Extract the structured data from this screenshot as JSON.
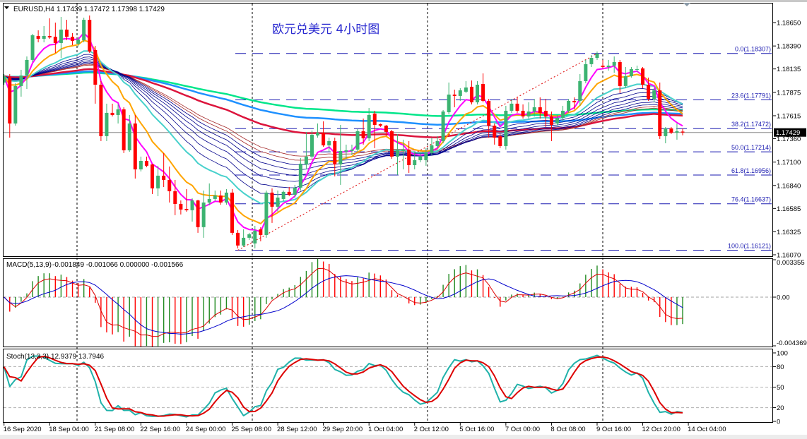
{
  "header": {
    "symbol": "EURUSD,H4",
    "ohlc_text": "1.17439 1.17472 1.17398 1.17429"
  },
  "title": "欧元兑美元 4小时图",
  "colors": {
    "bull": "#3cb371",
    "bear": "#ff0000",
    "fib": "#1a1ab0",
    "trendline": "#dd0000",
    "ema_fast": "#ff00ff",
    "ema_mid": "#ffa500",
    "ema_slow": "#48d1cc",
    "guppy": "#00008b",
    "guppy_outer": "#a52a2a",
    "long_1": "#dc143c",
    "long_2": "#1e90ff",
    "long_3": "#00e68a",
    "macd_main": "#dd0000",
    "macd_signal": "#0000cc",
    "stoch_main": "#20b2aa",
    "stoch_signal": "#dd0000"
  },
  "chart_data": [
    {
      "type": "candlestick",
      "symbol": "EURUSD",
      "timeframe": "H4",
      "current_price": "1.17429",
      "y_ticks": [
        "1.18650",
        "1.18390",
        "1.18135",
        "1.17875",
        "1.17615",
        "1.17360",
        "1.17100",
        "1.16840",
        "1.16585",
        "1.16325",
        "1.16070"
      ],
      "x_labels": [
        "16 Sep 2020",
        "18 Sep 04:00",
        "21 Sep 08:00",
        "22 Sep 16:00",
        "24 Sep 00:00",
        "25 Sep 08:00",
        "28 Sep 12:00",
        "29 Sep 20:00",
        "1 Oct 04:00",
        "2 Oct 12:00",
        "5 Oct 16:00",
        "7 Oct 00:00",
        "8 Oct 08:00",
        "9 Oct 16:00",
        "12 Oct 20:00",
        "14 Oct 04:00"
      ],
      "fibonacci": [
        {
          "label": "0.0(1.18307)",
          "price": 1.18307
        },
        {
          "label": "23.6(1.17791)",
          "price": 1.17791
        },
        {
          "label": "38.2(1.17472)",
          "price": 1.17472
        },
        {
          "label": "50.0(1.17214)",
          "price": 1.17214
        },
        {
          "label": "61.8(1.16956)",
          "price": 1.16956
        },
        {
          "label": "76.4(1.16637)",
          "price": 1.16637
        },
        {
          "label": "100.0(1.16121)",
          "price": 1.16121
        }
      ],
      "ohlc": [
        [
          1.17984,
          1.18078,
          1.1796,
          1.18054
        ],
        [
          1.18039,
          1.18078,
          1.17372,
          1.17529
        ],
        [
          1.17529,
          1.17976,
          1.17505,
          1.17945
        ],
        [
          1.17945,
          1.18125,
          1.17827,
          1.18062
        ],
        [
          1.18062,
          1.18274,
          1.17913,
          1.18235
        ],
        [
          1.18235,
          1.18525,
          1.18211,
          1.18509
        ],
        [
          1.18501,
          1.18564,
          1.18431,
          1.1847
        ],
        [
          1.1847,
          1.18611,
          1.18431,
          1.18501
        ],
        [
          1.18501,
          1.18697,
          1.1847,
          1.18485
        ],
        [
          1.18493,
          1.1865,
          1.18313,
          1.18423
        ],
        [
          1.18423,
          1.18713,
          1.18258,
          1.18572
        ],
        [
          1.18572,
          1.18681,
          1.18454,
          1.18493
        ],
        [
          1.18493,
          1.18533,
          1.18399,
          1.18446
        ],
        [
          1.18415,
          1.18493,
          1.18384,
          1.18462
        ],
        [
          1.18454,
          1.18705,
          1.18431,
          1.18681
        ],
        [
          1.18681,
          1.18729,
          1.18313,
          1.18329
        ],
        [
          1.18344,
          1.18391,
          1.17749,
          1.1796
        ],
        [
          1.1796,
          1.17999,
          1.17333,
          1.17388
        ],
        [
          1.17388,
          1.17749,
          1.17333,
          1.17647
        ],
        [
          1.17647,
          1.17749,
          1.17607,
          1.17623
        ],
        [
          1.17623,
          1.17741,
          1.17529,
          1.17686
        ],
        [
          1.17686,
          1.17709,
          1.172,
          1.17231
        ],
        [
          1.17231,
          1.17623,
          1.17215,
          1.17529
        ],
        [
          1.17529,
          1.17623,
          1.16917,
          1.17019
        ],
        [
          1.17019,
          1.17161,
          1.16996,
          1.17113
        ],
        [
          1.17113,
          1.17161,
          1.17043,
          1.17059
        ],
        [
          1.17074,
          1.17082,
          1.16745,
          1.16808
        ],
        [
          1.16808,
          1.17059,
          1.16721,
          1.16949
        ],
        [
          1.16949,
          1.172,
          1.16823,
          1.16902
        ],
        [
          1.16902,
          1.17051,
          1.16651,
          1.16776
        ],
        [
          1.16776,
          1.16902,
          1.1651,
          1.16635
        ],
        [
          1.16635,
          1.16674,
          1.16518,
          1.16573
        ],
        [
          1.1658,
          1.168,
          1.16549,
          1.16565
        ],
        [
          1.16565,
          1.16698,
          1.16439,
          1.16674
        ],
        [
          1.16674,
          1.16682,
          1.16314,
          1.16377
        ],
        [
          1.16377,
          1.16784,
          1.16259,
          1.16651
        ],
        [
          1.16651,
          1.16863,
          1.1662,
          1.1669
        ],
        [
          1.1669,
          1.16784,
          1.16667,
          1.16729
        ],
        [
          1.16729,
          1.16784,
          1.16627,
          1.16651
        ],
        [
          1.16651,
          1.168,
          1.16627,
          1.16761
        ],
        [
          1.16761,
          1.168,
          1.1629,
          1.16314
        ],
        [
          1.16314,
          1.16345,
          1.16141,
          1.16173
        ],
        [
          1.16173,
          1.16353,
          1.16157,
          1.16259
        ],
        [
          1.16259,
          1.16314,
          1.16235,
          1.16298
        ],
        [
          1.16196,
          1.16392,
          1.16141,
          1.16337
        ],
        [
          1.16353,
          1.16377,
          1.1622,
          1.1629
        ],
        [
          1.1629,
          1.16784,
          1.16259,
          1.16761
        ],
        [
          1.16761,
          1.16808,
          1.16424,
          1.16604
        ],
        [
          1.16604,
          1.16784,
          1.16549,
          1.16706
        ],
        [
          1.1669,
          1.16784,
          1.16667,
          1.16769
        ],
        [
          1.16769,
          1.16823,
          1.16721,
          1.16737
        ],
        [
          1.16737,
          1.16847,
          1.16706,
          1.16816
        ],
        [
          1.16816,
          1.17145,
          1.16784,
          1.17082
        ],
        [
          1.17074,
          1.17435,
          1.17019,
          1.17161
        ],
        [
          1.17161,
          1.17451,
          1.17137,
          1.17404
        ],
        [
          1.17396,
          1.17529,
          1.17372,
          1.17427
        ],
        [
          1.17427,
          1.17553,
          1.1727,
          1.17286
        ],
        [
          1.17286,
          1.17372,
          1.17215,
          1.17333
        ],
        [
          1.17333,
          1.17372,
          1.16941,
          1.17074
        ],
        [
          1.17074,
          1.17513,
          1.16847,
          1.17223
        ],
        [
          1.17215,
          1.17294,
          1.17137,
          1.17231
        ],
        [
          1.17223,
          1.17294,
          1.17176,
          1.17239
        ],
        [
          1.17239,
          1.17466,
          1.17215,
          1.17443
        ],
        [
          1.17443,
          1.17584,
          1.17294,
          1.17364
        ],
        [
          1.17364,
          1.17701,
          1.17333,
          1.17623
        ],
        [
          1.17639,
          1.1767,
          1.17255,
          1.17513
        ],
        [
          1.17521,
          1.17529,
          1.1749,
          1.17505
        ],
        [
          1.17505,
          1.17513,
          1.17388,
          1.17435
        ],
        [
          1.17443,
          1.17458,
          1.17137,
          1.17161
        ],
        [
          1.17161,
          1.17411,
          1.16957,
          1.17231
        ],
        [
          1.17223,
          1.17349,
          1.17019,
          1.17239
        ],
        [
          1.17239,
          1.17333,
          1.1698,
          1.17066
        ],
        [
          1.17066,
          1.17215,
          1.17019,
          1.17121
        ],
        [
          1.17121,
          1.17192,
          1.17098,
          1.17161
        ],
        [
          1.17121,
          1.17255,
          1.17059,
          1.172
        ],
        [
          1.172,
          1.17372,
          1.17176,
          1.17286
        ],
        [
          1.17278,
          1.17388,
          1.17255,
          1.17333
        ],
        [
          1.17333,
          1.17678,
          1.17309,
          1.17662
        ],
        [
          1.17654,
          1.17984,
          1.17631,
          1.1785
        ],
        [
          1.1785,
          1.17905,
          1.17709,
          1.17835
        ],
        [
          1.17835,
          1.17921,
          1.1778,
          1.17897
        ],
        [
          1.17882,
          1.17999,
          1.17866,
          1.17929
        ],
        [
          1.17937,
          1.18007,
          1.17741,
          1.17764
        ],
        [
          1.17764,
          1.17999,
          1.17741,
          1.1796
        ],
        [
          1.17968,
          1.18086,
          1.17764,
          1.1778
        ],
        [
          1.1778,
          1.17803,
          1.17372,
          1.17505
        ],
        [
          1.17505,
          1.17529,
          1.17294,
          1.17372
        ],
        [
          1.17388,
          1.17411,
          1.17255,
          1.17278
        ],
        [
          1.17278,
          1.17725,
          1.17239,
          1.1767
        ],
        [
          1.1767,
          1.17803,
          1.17647,
          1.17749
        ],
        [
          1.17749,
          1.17827,
          1.17647,
          1.1767
        ],
        [
          1.1767,
          1.17741,
          1.17584,
          1.17607
        ],
        [
          1.17607,
          1.17764,
          1.17584,
          1.17662
        ],
        [
          1.17662,
          1.17803,
          1.17607,
          1.17709
        ],
        [
          1.17709,
          1.17819,
          1.17584,
          1.17647
        ],
        [
          1.1767,
          1.17803,
          1.1749,
          1.17607
        ],
        [
          1.17607,
          1.17662,
          1.17333,
          1.17513
        ],
        [
          1.17529,
          1.17623,
          1.17505,
          1.17592
        ],
        [
          1.17592,
          1.17725,
          1.17553,
          1.1767
        ],
        [
          1.1767,
          1.17803,
          1.17647,
          1.1778
        ],
        [
          1.1778,
          1.17819,
          1.17686,
          1.17764
        ],
        [
          1.1778,
          1.18078,
          1.17725,
          1.17999
        ],
        [
          1.17999,
          1.18235,
          1.17976,
          1.18188
        ],
        [
          1.18188,
          1.18289,
          1.18156,
          1.18258
        ],
        [
          1.18258,
          1.18329,
          1.18235,
          1.18305
        ],
        [
          1.18172,
          1.18235,
          1.18141,
          1.18156
        ],
        [
          1.18156,
          1.18235,
          1.18117,
          1.18172
        ],
        [
          1.18172,
          1.18274,
          1.18093,
          1.18211
        ],
        [
          1.18211,
          1.18235,
          1.17866,
          1.17945
        ],
        [
          1.17945,
          1.18156,
          1.17921,
          1.18054
        ],
        [
          1.18054,
          1.18156,
          1.18039,
          1.18133
        ],
        [
          1.18125,
          1.18172,
          1.18101,
          1.18133
        ],
        [
          1.18141,
          1.18156,
          1.17921,
          1.1796
        ],
        [
          1.1796,
          1.18039,
          1.1778,
          1.17803
        ],
        [
          1.17803,
          1.17921,
          1.17764,
          1.17897
        ],
        [
          1.17897,
          1.17984,
          1.17357,
          1.17388
        ],
        [
          1.17388,
          1.1749,
          1.17309,
          1.17474
        ],
        [
          1.17474,
          1.1749,
          1.17411,
          1.17427
        ],
        [
          1.17427,
          1.17529,
          1.17349,
          1.17443
        ],
        [
          1.17439,
          1.17472,
          1.17398,
          1.17429
        ]
      ]
    },
    {
      "type": "bar",
      "indicator": "MACD",
      "label": "MACD(5,13,9)",
      "values_text": "-0.001849 -0.001066 0.000000 -0.001566",
      "y_ticks": [
        "0.003355",
        "0.00",
        "-0.004369"
      ],
      "ylim": [
        -0.004369,
        0.003355
      ]
    },
    {
      "type": "line",
      "indicator": "Stochastic",
      "label": "Stoch(13,3,3)",
      "values_text": "12.9379 13.7946",
      "y_ticks": [
        "100",
        "80",
        "50",
        "20",
        "0"
      ],
      "levels": [
        80,
        50,
        20
      ],
      "ylim": [
        0,
        100
      ]
    }
  ]
}
